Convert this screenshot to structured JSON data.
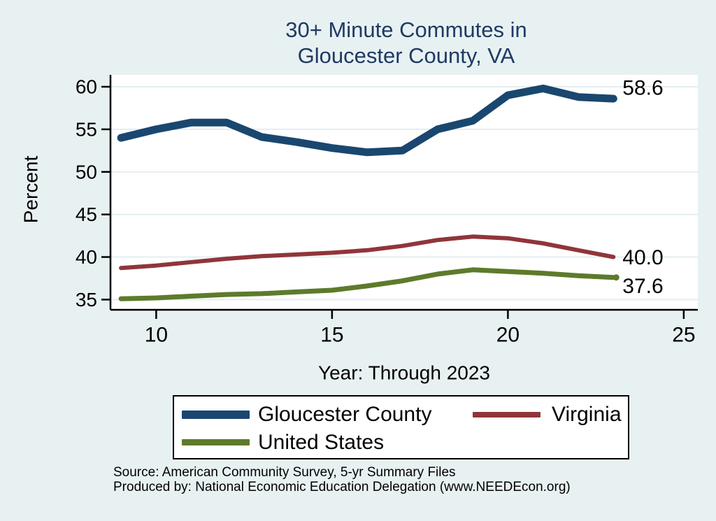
{
  "title": {
    "line1": "30+ Minute Commutes in",
    "line2": "Gloucester County, VA"
  },
  "axes": {
    "y_label": "Percent",
    "x_label": "Year: Through 2023"
  },
  "footer": {
    "source_line": "Source: American Community Survey, 5-yr Summary Files",
    "produced_line": "Produced by: National Economic Education Delegation (www.NEEDEcon.org)"
  },
  "colors": {
    "page_background": "#e8f1f2",
    "plot_background": "#ffffff",
    "gridline": "#e4eef2",
    "axis": "#000000",
    "title_text": "#1f3a63",
    "navy": "#1a476f",
    "maroon": "#90353b",
    "olive": "#5d7b2b"
  },
  "chart_data": {
    "type": "line",
    "title": "30+ Minute Commutes in Gloucester County, VA",
    "xlabel": "Year: Through 2023",
    "ylabel": "Percent",
    "x": [
      2009,
      2010,
      2011,
      2012,
      2013,
      2014,
      2015,
      2016,
      2017,
      2018,
      2019,
      2020,
      2021,
      2022,
      2023
    ],
    "series": [
      {
        "name": "Gloucester County",
        "color": "#1a476f",
        "values": [
          54.0,
          55.0,
          55.8,
          55.8,
          54.1,
          53.5,
          52.8,
          52.3,
          52.5,
          55.0,
          56.0,
          59.0,
          59.8,
          58.8,
          58.6
        ],
        "end_label": "58.6",
        "end_marker": false
      },
      {
        "name": "Virginia",
        "color": "#90353b",
        "values": [
          38.7,
          39.0,
          39.4,
          39.8,
          40.1,
          40.3,
          40.5,
          40.8,
          41.3,
          42.0,
          42.4,
          42.2,
          41.6,
          40.8,
          40.0
        ],
        "end_label": "40.0",
        "end_marker": false
      },
      {
        "name": "United States",
        "color": "#5d7b2b",
        "values": [
          35.1,
          35.2,
          35.4,
          35.6,
          35.7,
          35.9,
          36.1,
          36.6,
          37.2,
          38.0,
          38.5,
          38.3,
          38.1,
          37.8,
          37.6
        ],
        "end_label": "37.6",
        "end_marker": true
      }
    ],
    "xlim": [
      2008.7,
      2025.4
    ],
    "ylim": [
      33.8,
      61.4
    ],
    "xticks": [
      {
        "value": 2010,
        "label": "10"
      },
      {
        "value": 2015,
        "label": "15"
      },
      {
        "value": 2020,
        "label": "20"
      },
      {
        "value": 2025,
        "label": "25"
      }
    ],
    "yticks": [
      {
        "value": 35,
        "label": "35"
      },
      {
        "value": 40,
        "label": "40"
      },
      {
        "value": 45,
        "label": "45"
      },
      {
        "value": 50,
        "label": "50"
      },
      {
        "value": 55,
        "label": "55"
      },
      {
        "value": 60,
        "label": "60"
      }
    ],
    "grid": "horizontal",
    "legend_position": "bottom"
  }
}
